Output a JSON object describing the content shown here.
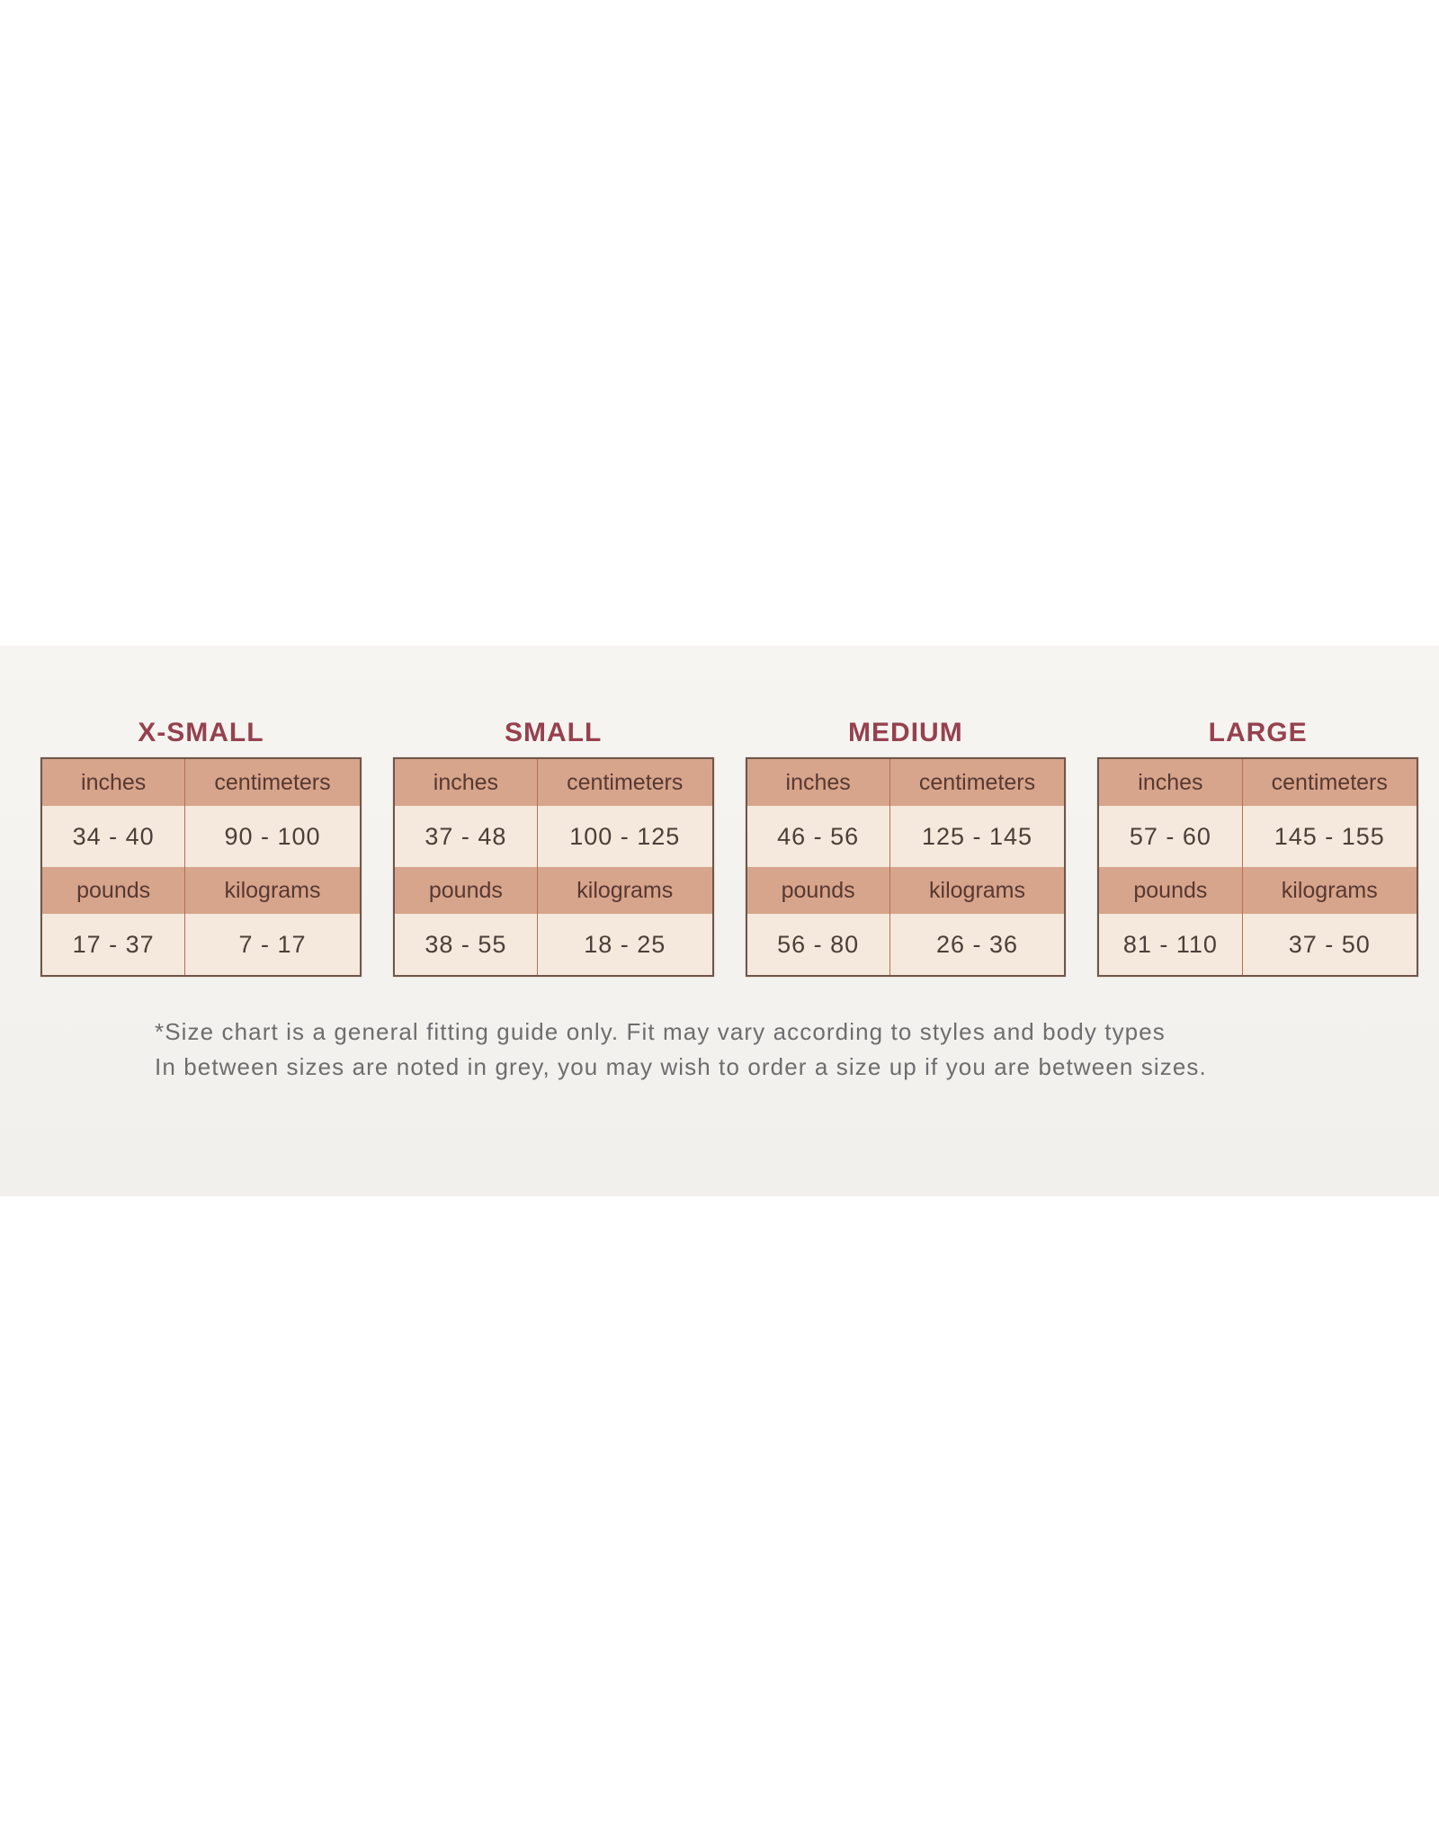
{
  "page": {
    "photo_band_bg": "#f4f2ee",
    "page_bg": "#ffffff"
  },
  "colors": {
    "title_text": "#96414f",
    "header_cell_bg": "#d7a48c",
    "value_cell_bg": "#f4e9dc",
    "table_border": "#6f564b",
    "column_divider": "#b4705a",
    "header_text": "#573931",
    "value_text": "#4c3e39",
    "footnote_text": "#6d6d6d"
  },
  "tables": [
    {
      "title": "X-SMALL",
      "rows": [
        [
          "inches",
          "centimeters"
        ],
        [
          "34 - 40",
          "90 - 100"
        ],
        [
          "pounds",
          "kilograms"
        ],
        [
          "17 - 37",
          "7 - 17"
        ]
      ]
    },
    {
      "title": "SMALL",
      "rows": [
        [
          "inches",
          "centimeters"
        ],
        [
          "37 - 48",
          "100 - 125"
        ],
        [
          "pounds",
          "kilograms"
        ],
        [
          "38 - 55",
          "18 - 25"
        ]
      ]
    },
    {
      "title": "MEDIUM",
      "rows": [
        [
          "inches",
          "centimeters"
        ],
        [
          "46 - 56",
          "125 - 145"
        ],
        [
          "pounds",
          "kilograms"
        ],
        [
          "56 - 80",
          "26 - 36"
        ]
      ]
    },
    {
      "title": "LARGE",
      "rows": [
        [
          "inches",
          "centimeters"
        ],
        [
          "57 - 60",
          "145 - 155"
        ],
        [
          "pounds",
          "kilograms"
        ],
        [
          "81 - 110",
          "37 - 50"
        ]
      ]
    }
  ],
  "footnote": {
    "line1": "*Size chart is a general fitting guide only. Fit may vary according to styles and body types",
    "line2": "In between sizes are noted in grey, you may wish to order a size up if you are between sizes."
  }
}
